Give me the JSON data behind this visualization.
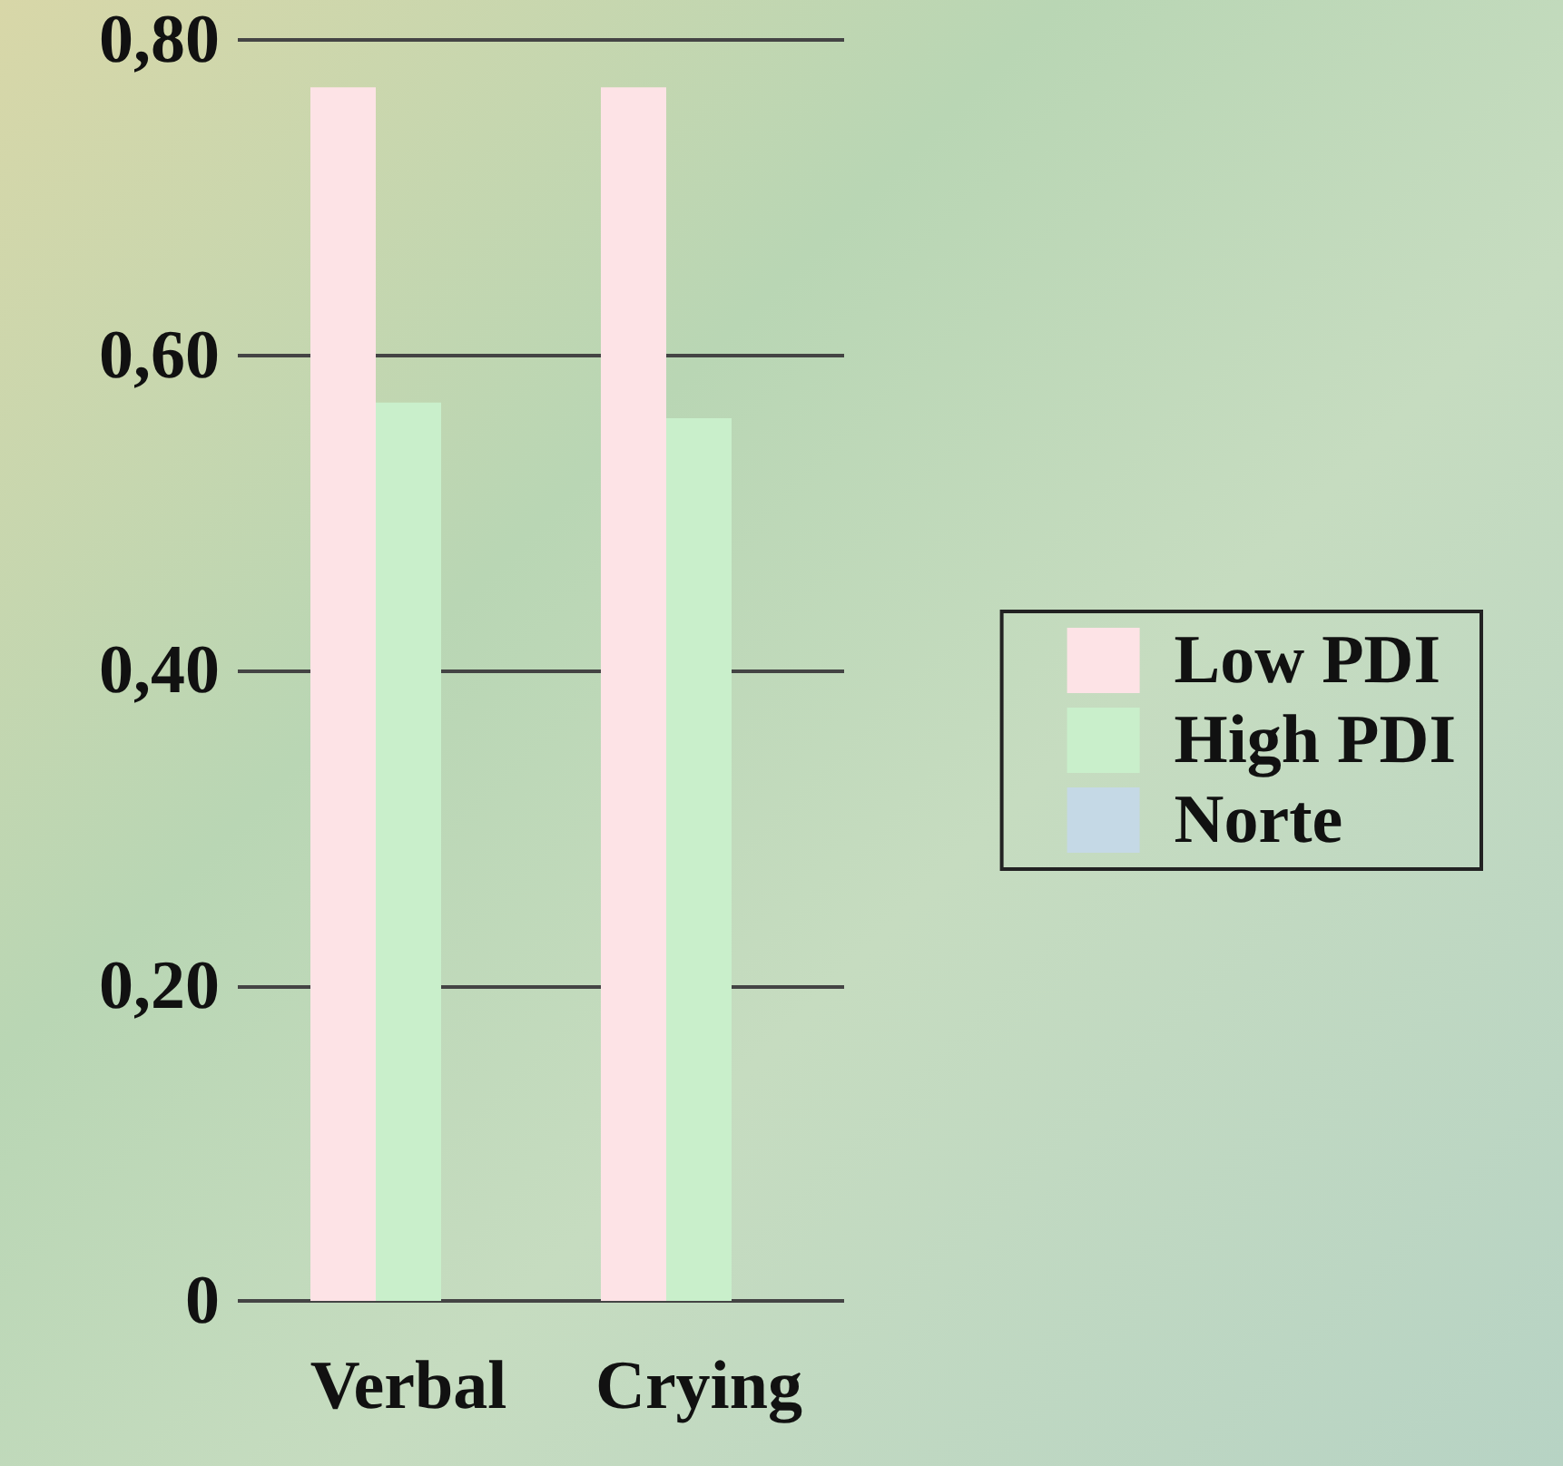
{
  "chart_data": {
    "type": "bar",
    "categories": [
      "Verbal",
      "Crying"
    ],
    "series": [
      {
        "name": "Low PDI",
        "color": "#fde3e6",
        "values": [
          0.77,
          0.77
        ]
      },
      {
        "name": "High PDI",
        "color": "#c9efcb",
        "values": [
          0.57,
          0.56
        ]
      },
      {
        "name": "Norte",
        "color": "#c5d9e6",
        "values": [
          null,
          null
        ]
      }
    ],
    "ylim": [
      0,
      0.8
    ],
    "yticks": [
      {
        "value": 0,
        "label": "0"
      },
      {
        "value": 0.2,
        "label": "0,20"
      },
      {
        "value": 0.4,
        "label": "0,40"
      },
      {
        "value": 0.6,
        "label": "0,60"
      },
      {
        "value": 0.8,
        "label": "0,80"
      }
    ],
    "grid": "y",
    "legend": "right"
  }
}
